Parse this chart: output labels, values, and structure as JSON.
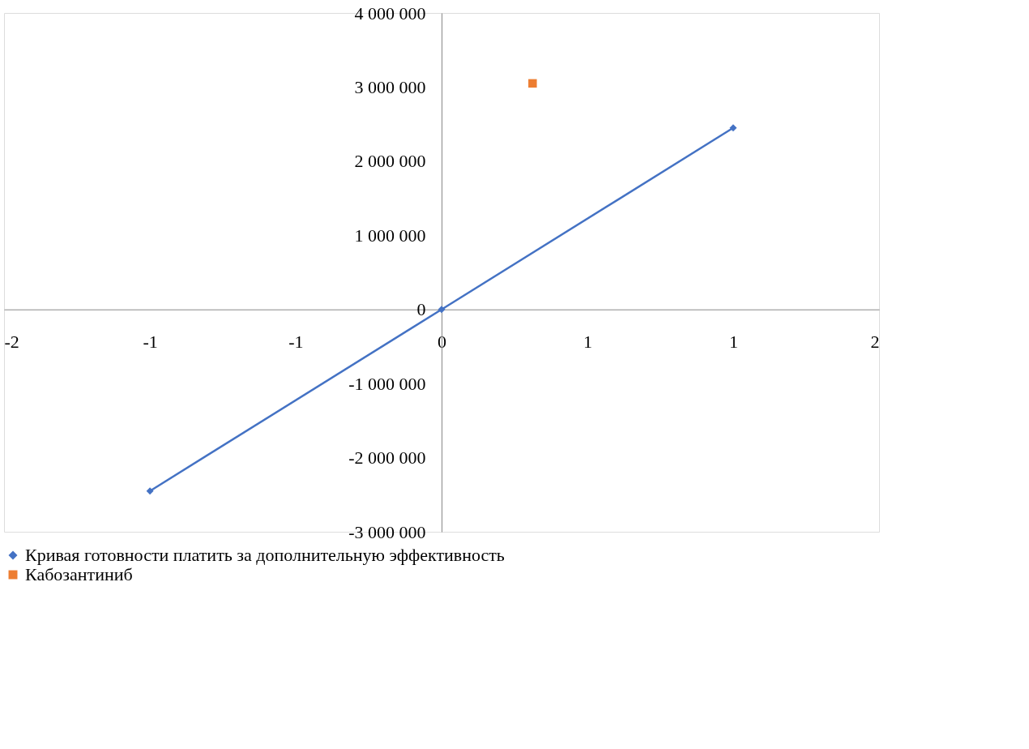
{
  "chart_data": {
    "type": "line",
    "xlim": [
      -2,
      2
    ],
    "xticks": [
      -2,
      {
        "value": -1.333,
        "label": "-1"
      },
      {
        "value": -0.667,
        "label": "-1"
      },
      0,
      {
        "value": 0.667,
        "label": "1"
      },
      {
        "value": 1.333,
        "label": "1"
      },
      2
    ],
    "ylim": [
      -3000000,
      4000000
    ],
    "yticks": [
      {
        "value": -3000000,
        "label": "-3 000 000"
      },
      {
        "value": -2000000,
        "label": "-2 000 000"
      },
      {
        "value": -1000000,
        "label": "-1 000 000"
      },
      {
        "value": 0,
        "label": "0"
      },
      {
        "value": 1000000,
        "label": "1 000 000"
      },
      {
        "value": 2000000,
        "label": "2 000 000"
      },
      {
        "value": 3000000,
        "label": "3 000 000"
      },
      {
        "value": 4000000,
        "label": "4 000 000"
      }
    ],
    "grid": false,
    "legend": "bottom",
    "series": [
      {
        "name": "Кривая готовности платить за дополнительную эффективность",
        "type": "line",
        "marker": "diamond",
        "color": "#4472c4",
        "x": [
          -1.333,
          0,
          1.333
        ],
        "values": [
          -2450000,
          0,
          2450000
        ]
      },
      {
        "name": "Кабозантиниб",
        "type": "scatter",
        "marker": "square",
        "color": "#ed7d31",
        "x": [
          0.416
        ],
        "values": [
          3050000
        ]
      }
    ]
  }
}
